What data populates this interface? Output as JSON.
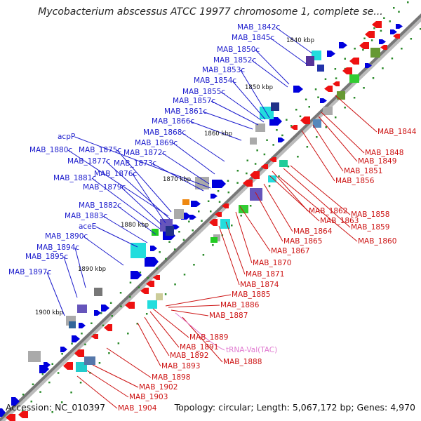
{
  "title": "Mycobacterium abscessus ATCC 19977 chromosome 1, complete se...",
  "accession_label": "Accession: NC_010397",
  "summary": "Topology: circular; Length: 5,067,172 bp; Genes: 4,970",
  "kbp_marks": [
    "1840 kbp",
    "1850 kbp",
    "1860 kbp",
    "1870 kbp",
    "1880 kbp",
    "1890 kbp",
    "1900 kbp"
  ],
  "labels_forward": [
    "MAB_1842c",
    "MAB_1845c",
    "MAB_1850c",
    "MAB_1852c",
    "MAB_1853c",
    "MAB_1854c",
    "MAB_1855c",
    "MAB_1857c",
    "MAB_1861c",
    "MAB_1866c",
    "MAB_1868c",
    "MAB_1869c",
    "acpP",
    "MAB_1875c",
    "MAB_1880c",
    "MAB_1872c",
    "MAB_1877c",
    "MAB_1873c",
    "MAB_1876c",
    "MAB_1881c",
    "MAB_1879c",
    "MAB_1882c",
    "MAB_1883c",
    "aceE",
    "MAB_1890c",
    "MAB_1894c",
    "MAB_1895c",
    "MAB_1897c"
  ],
  "labels_reverse": [
    "MAB_1844",
    "MAB_1848",
    "MAB_1849",
    "MAB_1851",
    "MAB_1856",
    "MAB_1858",
    "MAB_1862",
    "MAB_1863",
    "MAB_1859",
    "MAB_1864",
    "MAB_1860",
    "MAB_1865",
    "MAB_1867",
    "MAB_1870",
    "MAB_1871",
    "MAB_1874",
    "MAB_1885",
    "MAB_1886",
    "MAB_1887",
    "MAB_1889",
    "MAB_1891",
    "MAB_1892",
    "MAB_1888",
    "MAB_1893",
    "MAB_1898",
    "MAB_1902",
    "MAB_1903",
    "MAB_1904"
  ],
  "labels_rna": [
    "tRNA-Val(TAC)"
  ],
  "colors": {
    "forward_gene": "#0000dd",
    "reverse_gene": "#ee1111",
    "forward_label": "#1a1acc",
    "reverse_label": "#cc1111",
    "rna_label": "#e07ad0",
    "backbone": "#888888"
  }
}
